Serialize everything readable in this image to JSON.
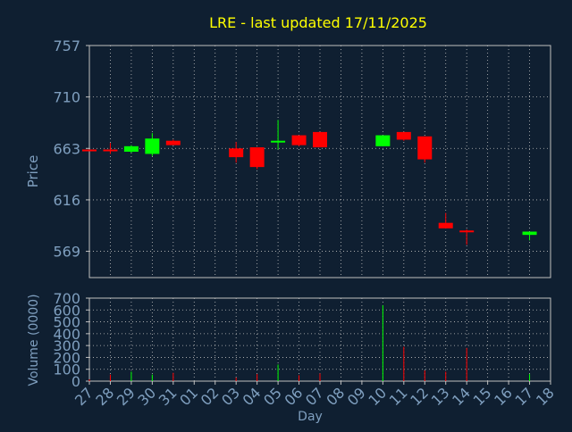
{
  "chart_data": {
    "type": "candlestick",
    "title": "LRE - last updated 17/11/2025",
    "xlabel": "Day",
    "ylabel_price": "Price",
    "ylabel_volume": "Volume (0000)",
    "price_ticks": [
      "757",
      "710",
      "663",
      "616",
      "569"
    ],
    "price_range": [
      545,
      757
    ],
    "volume_ticks": [
      "700",
      "600",
      "500",
      "400",
      "300",
      "200",
      "100",
      "0"
    ],
    "volume_range": [
      0,
      700
    ],
    "grid": true,
    "colors": {
      "background": "#0f1f31",
      "title": "#ffff00",
      "axis_text": "#7f9fbf",
      "grid": "#c0c0c0",
      "up": "#00ff00",
      "down": "#ff0000"
    },
    "days": [
      {
        "label": "27",
        "open": 662,
        "high": 662,
        "low": 661,
        "close": 661,
        "volume": 15
      },
      {
        "label": "28",
        "open": 662,
        "high": 668,
        "low": 658,
        "close": 661,
        "volume": 55
      },
      {
        "label": "29",
        "open": 660,
        "high": 666,
        "low": 659,
        "close": 665,
        "volume": 80
      },
      {
        "label": "30",
        "open": 658,
        "high": 677,
        "low": 656,
        "close": 672,
        "volume": 55
      },
      {
        "label": "31",
        "open": 670,
        "high": 671,
        "low": 666,
        "close": 666,
        "volume": 70
      },
      {
        "label": "01",
        "open": null,
        "high": null,
        "low": null,
        "close": null,
        "volume": 0
      },
      {
        "label": "02",
        "open": null,
        "high": null,
        "low": null,
        "close": null,
        "volume": 0
      },
      {
        "label": "03",
        "open": 663,
        "high": 669,
        "low": 650,
        "close": 655,
        "volume": 30
      },
      {
        "label": "04",
        "open": 664,
        "high": 664,
        "low": 644,
        "close": 646,
        "volume": 60
      },
      {
        "label": "05",
        "open": 670,
        "high": 689,
        "low": 662,
        "close": 670,
        "volume": 140
      },
      {
        "label": "06",
        "open": 675,
        "high": 675,
        "low": 665,
        "close": 666,
        "volume": 50
      },
      {
        "label": "07",
        "open": 678,
        "high": 678,
        "low": 664,
        "close": 664,
        "volume": 65
      },
      {
        "label": "08",
        "open": null,
        "high": null,
        "low": null,
        "close": null,
        "volume": 0
      },
      {
        "label": "09",
        "open": null,
        "high": null,
        "low": null,
        "close": null,
        "volume": 0
      },
      {
        "label": "10",
        "open": 665,
        "high": 675,
        "low": 665,
        "close": 675,
        "volume": 640
      },
      {
        "label": "11",
        "open": 678,
        "high": 678,
        "low": 670,
        "close": 671,
        "volume": 290
      },
      {
        "label": "12",
        "open": 674,
        "high": 674,
        "low": 650,
        "close": 653,
        "volume": 90
      },
      {
        "label": "13",
        "open": 595,
        "high": 604,
        "low": 590,
        "close": 590,
        "volume": 80
      },
      {
        "label": "14",
        "open": 588,
        "high": 589,
        "low": 575,
        "close": 587,
        "volume": 280
      },
      {
        "label": "15",
        "open": null,
        "high": null,
        "low": null,
        "close": null,
        "volume": 0
      },
      {
        "label": "16",
        "open": null,
        "high": null,
        "low": null,
        "close": null,
        "volume": 0
      },
      {
        "label": "17",
        "open": 584,
        "high": 587,
        "low": 579,
        "close": 587,
        "volume": 60
      },
      {
        "label": "18",
        "open": null,
        "high": null,
        "low": null,
        "close": null,
        "volume": 0
      }
    ]
  }
}
